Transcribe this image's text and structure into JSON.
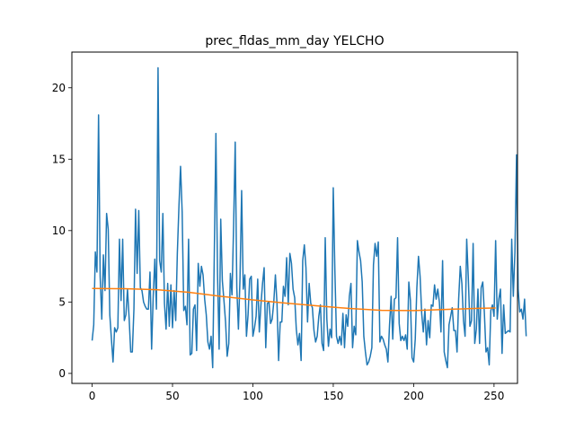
{
  "chart_data": {
    "type": "line",
    "title": "prec_fldas_mm_day YELCHO",
    "xlabel": "",
    "ylabel": "",
    "xlim": [
      -12.6,
      264.6
    ],
    "ylim": [
      -0.7,
      22.5
    ],
    "xticks": [
      0,
      50,
      100,
      150,
      200,
      250
    ],
    "yticks": [
      0,
      5,
      10,
      15,
      20
    ],
    "grid": false,
    "legend": null,
    "series": [
      {
        "color": "#1f77b4",
        "x_start": 0,
        "values": [
          2.3,
          3.4,
          8.5,
          7.1,
          18.1,
          6.8,
          3.8,
          8.3,
          5.8,
          11.2,
          10.1,
          4.1,
          2.4,
          0.8,
          3.2,
          2.9,
          3.2,
          9.4,
          5.1,
          9.4,
          3.7,
          4.1,
          5.9,
          3.9,
          1.5,
          1.5,
          4.5,
          11.5,
          7.0,
          11.4,
          6.0,
          5.8,
          5.0,
          4.7,
          4.5,
          4.5,
          7.1,
          1.7,
          5.4,
          8.0,
          4.5,
          21.4,
          7.9,
          7.1,
          11.2,
          4.9,
          3.1,
          6.3,
          3.3,
          6.2,
          3.2,
          5.8,
          3.7,
          8.4,
          11.7,
          14.5,
          11.3,
          4.4,
          4.7,
          3.4,
          9.4,
          1.3,
          1.4,
          4.5,
          4.8,
          1.6,
          7.7,
          6.1,
          7.5,
          6.9,
          5.2,
          4.1,
          2.2,
          1.7,
          2.6,
          0.4,
          8.4,
          16.8,
          7.0,
          1.7,
          10.8,
          6.5,
          5.1,
          3.6,
          1.2,
          2.1,
          7.0,
          5.5,
          10.3,
          16.2,
          6.0,
          3.1,
          6.7,
          12.8,
          5.9,
          6.9,
          2.6,
          4.1,
          6.6,
          6.8,
          2.6,
          3.2,
          4.0,
          6.6,
          2.9,
          4.8,
          6.3,
          7.4,
          1.8,
          4.9,
          5.0,
          3.5,
          3.8,
          5.0,
          6.9,
          4.9,
          0.9,
          3.6,
          3.6,
          6.1,
          5.4,
          8.1,
          4.8,
          8.4,
          7.7,
          5.9,
          5.3,
          3.1,
          2.0,
          2.8,
          0.9,
          7.9,
          9.0,
          7.4,
          3.6,
          6.3,
          4.9,
          4.6,
          3.0,
          2.2,
          2.6,
          4.0,
          4.8,
          2.1,
          1.6,
          9.5,
          3.8,
          1.9,
          3.1,
          2.5,
          13.0,
          7.2,
          2.6,
          2.1,
          2.6,
          2.0,
          4.2,
          1.8,
          4.1,
          3.3,
          5.4,
          6.3,
          1.8,
          3.3,
          2.7,
          9.3,
          8.5,
          7.9,
          6.4,
          2.6,
          1.5,
          0.6,
          0.8,
          1.2,
          1.8,
          7.6,
          9.1,
          8.2,
          9.2,
          2.2,
          2.6,
          2.4,
          2.0,
          1.7,
          0.8,
          3.4,
          5.4,
          2.4,
          5.2,
          5.3,
          9.5,
          3.5,
          2.3,
          2.6,
          2.3,
          2.7,
          1.7,
          6.4,
          5.1,
          1.1,
          0.8,
          2.4,
          6.0,
          8.2,
          6.8,
          4.2,
          2.9,
          4.5,
          2.0,
          3.7,
          2.5,
          4.8,
          4.7,
          6.2,
          5.2,
          5.9,
          5.0,
          2.9,
          7.9,
          1.5,
          0.9,
          0.4,
          3.4,
          4.0,
          4.6,
          3.0,
          3.0,
          1.5,
          5.2,
          7.5,
          6.3,
          3.7,
          2.6,
          9.4,
          6.7,
          3.3,
          3.7,
          9.1,
          2.1,
          3.1,
          5.9,
          2.1,
          6.0,
          6.4,
          4.2,
          1.5,
          1.8,
          0.6,
          4.4,
          4.8,
          4.0,
          9.3,
          3.8,
          5.2,
          5.9,
          1.4,
          4.8,
          2.8,
          2.9,
          3.0,
          2.9,
          9.4,
          5.4,
          8.5,
          15.3,
          5.9,
          4.3,
          4.5,
          3.8,
          5.2,
          2.6
        ]
      },
      {
        "color": "#ff7f0e",
        "x": [
          0,
          20,
          40,
          60,
          80,
          100,
          120,
          140,
          160,
          180,
          200,
          220,
          240,
          251
        ],
        "values": [
          5.95,
          5.93,
          5.86,
          5.68,
          5.4,
          5.15,
          4.93,
          4.73,
          4.55,
          4.42,
          4.4,
          4.48,
          4.56,
          4.58
        ]
      }
    ]
  }
}
